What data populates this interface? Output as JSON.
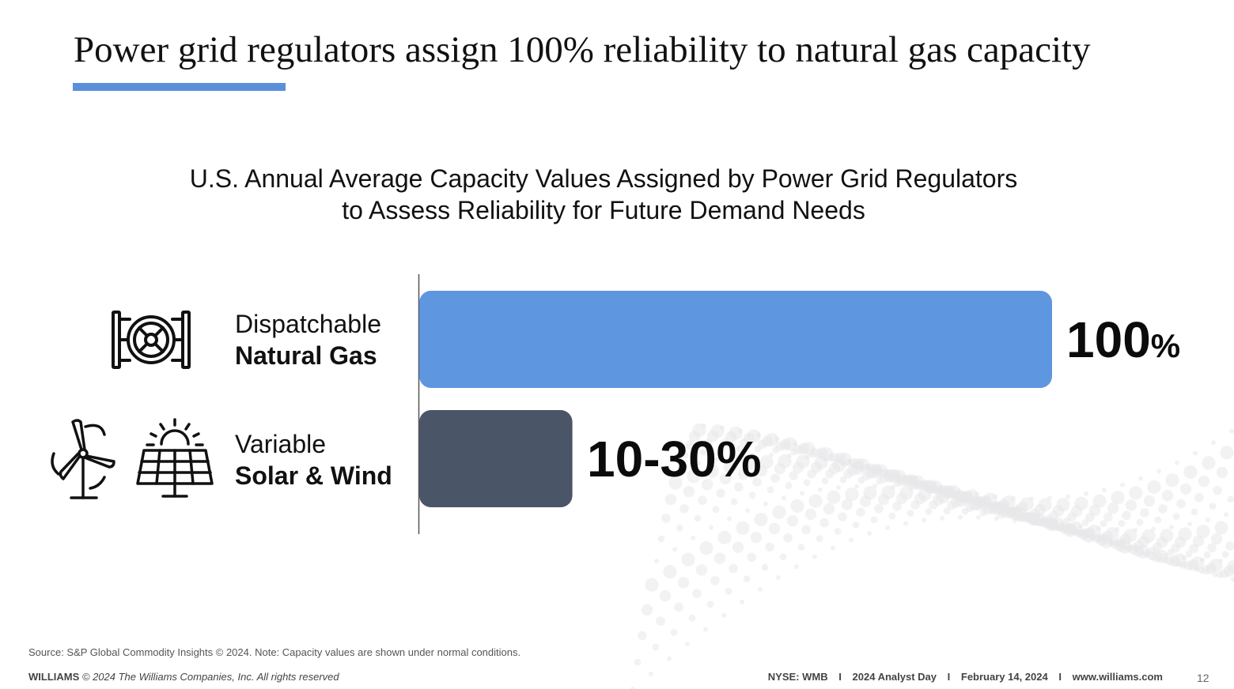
{
  "slide": {
    "title": "Power grid regulators assign 100% reliability to natural gas capacity",
    "accent_color": "#5b8fdc"
  },
  "chart_data": {
    "type": "bar",
    "orientation": "horizontal",
    "title_line1": "U.S. Annual Average Capacity Values Assigned by Power Grid Regulators",
    "title_line2": "to Assess Reliability for Future Demand Needs",
    "categories": [
      {
        "line1": "Dispatchable",
        "line2": "Natural Gas",
        "icons": [
          "gas-turbine-icon"
        ]
      },
      {
        "line1": "Variable",
        "line2": "Solar & Wind",
        "icons": [
          "wind-turbine-icon",
          "solar-panel-icon"
        ]
      }
    ],
    "values": [
      100,
      30
    ],
    "value_ranges": [
      [
        100,
        100
      ],
      [
        10,
        30
      ]
    ],
    "value_labels": [
      {
        "main": "100",
        "suffix": "%"
      },
      {
        "main": "10-30%",
        "suffix": ""
      }
    ],
    "colors": [
      "#5e96e0",
      "#4b5568"
    ],
    "xlim": [
      0,
      100
    ],
    "grid": false,
    "legend": "none"
  },
  "footer": {
    "source": "Source: S&P Global Commodity Insights © 2024. Note: Capacity values are shown under normal conditions.",
    "brand": "WILLIAMS",
    "copyright": "© 2024 The Williams Companies, Inc. All rights reserved",
    "ticker": "NYSE: WMB",
    "event": "2024 Analyst Day",
    "date": "February 14, 2024",
    "website": "www.williams.com",
    "separator": "I",
    "page_number": "12"
  }
}
